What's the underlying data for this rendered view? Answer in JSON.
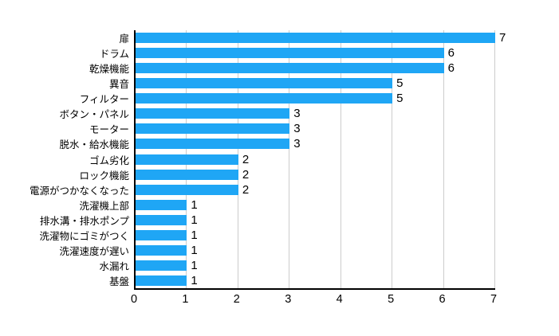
{
  "chart_data": {
    "type": "bar",
    "orientation": "horizontal",
    "title": "",
    "xlabel": "",
    "ylabel": "",
    "categories": [
      "扉",
      "ドラム",
      "乾燥機能",
      "異音",
      "フィルター",
      "ボタン・パネル",
      "モーター",
      "脱水・給水機能",
      "ゴム劣化",
      "ロック機能",
      "電源がつかなくなった",
      "洗濯機上部",
      "排水溝・排水ポンプ",
      "洗濯物にゴミがつく",
      "洗濯速度が遅い",
      "水漏れ",
      "基盤"
    ],
    "values": [
      7,
      6,
      6,
      5,
      5,
      3,
      3,
      3,
      2,
      2,
      2,
      1,
      1,
      1,
      1,
      1,
      1
    ],
    "xlim": [
      0,
      7
    ],
    "x_ticks": [
      "0",
      "1",
      "2",
      "3",
      "4",
      "5",
      "6",
      "7"
    ],
    "grid": true,
    "legend": false,
    "colors": {
      "bar": "#1FA6F5",
      "gridline": "#cccccc",
      "axis": "#000000",
      "text": "#000000",
      "background": "#ffffff"
    }
  }
}
